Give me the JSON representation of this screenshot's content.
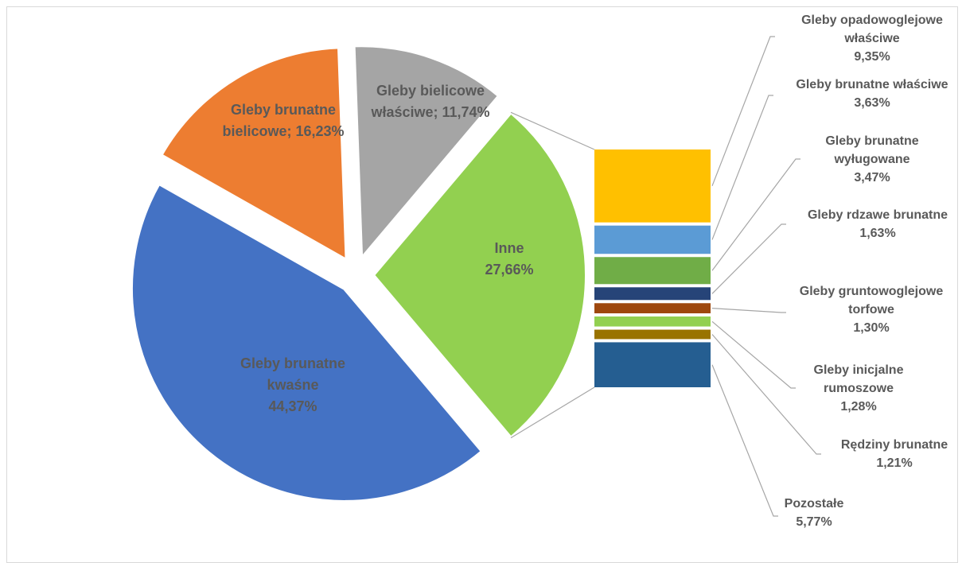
{
  "chart_data": {
    "type": "bar-of-pie",
    "title": "",
    "pie": {
      "slices": [
        {
          "key": "inne",
          "label": "Inne",
          "value": 27.66,
          "display": "27,66%",
          "color": "#92D050"
        },
        {
          "key": "brunatne_kwasne",
          "label": "Gleby brunatne kwaśne",
          "value": 44.37,
          "display": "44,37%",
          "color": "#4472C4"
        },
        {
          "key": "brunatne_bielicowe",
          "label": "Gleby brunatne bielicowe",
          "value": 16.23,
          "display": "16,23%",
          "color": "#ED7D31"
        },
        {
          "key": "bielicowe_wlasciwe",
          "label": "Gleby bielicowe właściwe",
          "value": 11.74,
          "display": "11,74%",
          "color": "#A5A5A5"
        }
      ],
      "slice_labels": {
        "inne": [
          "Inne",
          "27,66%"
        ],
        "brunatne_kwasne": [
          "Gleby brunatne",
          "kwaśne",
          "44,37%"
        ],
        "brunatne_bielicowe": [
          "Gleby brunatne",
          "bielicowe; 16,23%"
        ],
        "bielicowe_wlasciwe": [
          "Gleby bielicowe",
          "właściwe; 11,74%"
        ]
      }
    },
    "bar": {
      "segments": [
        {
          "key": "opadowoglejowe",
          "label": "Gleby opadowoglejowe właściwe",
          "value": 9.35,
          "display": "9,35%",
          "color": "#FFC000"
        },
        {
          "key": "brunatne_wlasciwe",
          "label": "Gleby brunatne właściwe",
          "value": 3.63,
          "display": "3,63%",
          "color": "#5B9BD5"
        },
        {
          "key": "brunatne_wylugowane",
          "label": "Gleby brunatne wyługowane",
          "value": 3.47,
          "display": "3,47%",
          "color": "#70AD47"
        },
        {
          "key": "rdzawe_brunatne",
          "label": "Gleby rdzawe brunatne",
          "value": 1.63,
          "display": "1,63%",
          "color": "#264478"
        },
        {
          "key": "gruntowoglejowe_torfowe",
          "label": "Gleby gruntowoglejowe torfowe",
          "value": 1.3,
          "display": "1,30%",
          "color": "#9E480E"
        },
        {
          "key": "inicjalne_rumoszowe",
          "label": "Gleby inicjalne rumoszowe",
          "value": 1.28,
          "display": "1,28%",
          "color": "#92D050"
        },
        {
          "key": "rendziny_brunatne",
          "label": "Rędziny brunatne",
          "value": 1.21,
          "display": "1,21%",
          "color": "#997300"
        },
        {
          "key": "pozostale",
          "label": "Pozostałe",
          "value": 5.77,
          "display": "5,77%",
          "color": "#255E91"
        }
      ],
      "segment_labels": {
        "opadowoglejowe": [
          "Gleby opadowoglejowe",
          "właściwe",
          "9,35%"
        ],
        "brunatne_wlasciwe": [
          "Gleby brunatne właściwe",
          "3,63%"
        ],
        "brunatne_wylugowane": [
          "Gleby brunatne",
          "wyługowane",
          "3,47%"
        ],
        "rdzawe_brunatne": [
          "Gleby rdzawe brunatne",
          "1,63%"
        ],
        "gruntowoglejowe_torfowe": [
          "Gleby gruntowoglejowe",
          "torfowe",
          "1,30%"
        ],
        "inicjalne_rumoszowe": [
          "Gleby inicjalne",
          "rumoszowe",
          "1,28%"
        ],
        "rendziny_brunatne": [
          "Rędziny brunatne",
          "1,21%"
        ],
        "pozostale": [
          "Pozostałe",
          "5,77%"
        ]
      }
    },
    "label_color": "#595959",
    "leader_color": "#A6A6A6",
    "connector_color": "#A6A6A6"
  }
}
